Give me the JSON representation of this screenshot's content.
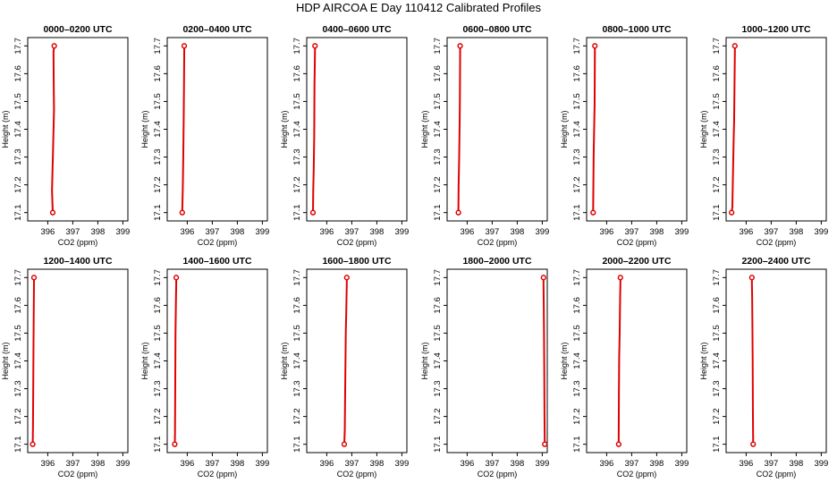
{
  "title": "HDP AIRCOA E  Day 110412  Calibrated Profiles",
  "colors": {
    "profile": "#e00000",
    "axis": "#000000",
    "background": "#ffffff"
  },
  "chart_data": [
    {
      "type": "line",
      "title": "0000–0200 UTC",
      "xlabel": "CO2 (ppm)",
      "ylabel": "Height (m)",
      "xlim": [
        395.2,
        399.2
      ],
      "ylim": [
        17.07,
        17.73
      ],
      "xticks": [
        396,
        397,
        398,
        399
      ],
      "yticks": [
        17.1,
        17.2,
        17.3,
        17.4,
        17.5,
        17.6,
        17.7
      ],
      "grid": false,
      "series": [
        {
          "x": [
            396.2,
            396.17,
            396.21,
            396.25,
            396.24,
            396.23,
            396.26
          ],
          "y": [
            17.1,
            17.18,
            17.32,
            17.47,
            17.55,
            17.68,
            17.7
          ],
          "endpoints": [
            17.1,
            17.7
          ]
        }
      ]
    },
    {
      "type": "line",
      "title": "0200–0400 UTC",
      "xlabel": "CO2 (ppm)",
      "ylabel": "Height (m)",
      "xlim": [
        395.2,
        399.2
      ],
      "ylim": [
        17.07,
        17.73
      ],
      "xticks": [
        396,
        397,
        398,
        399
      ],
      "yticks": [
        17.1,
        17.2,
        17.3,
        17.4,
        17.5,
        17.6,
        17.7
      ],
      "grid": false,
      "series": [
        {
          "x": [
            395.8,
            395.82,
            395.84,
            395.86,
            395.87,
            395.88,
            395.88
          ],
          "y": [
            17.1,
            17.18,
            17.29,
            17.46,
            17.56,
            17.68,
            17.7
          ],
          "endpoints": [
            17.1,
            17.7
          ]
        }
      ]
    },
    {
      "type": "line",
      "title": "0400–0600 UTC",
      "xlabel": "CO2 (ppm)",
      "ylabel": "Height (m)",
      "xlim": [
        395.2,
        399.2
      ],
      "ylim": [
        17.07,
        17.73
      ],
      "xticks": [
        396,
        397,
        398,
        399
      ],
      "yticks": [
        17.1,
        17.2,
        17.3,
        17.4,
        17.5,
        17.6,
        17.7
      ],
      "grid": false,
      "series": [
        {
          "x": [
            395.45,
            395.46,
            395.48,
            395.5,
            395.51,
            395.53,
            395.53
          ],
          "y": [
            17.1,
            17.18,
            17.26,
            17.38,
            17.56,
            17.68,
            17.7
          ],
          "endpoints": [
            17.1,
            17.7
          ]
        }
      ]
    },
    {
      "type": "line",
      "title": "0600–0800 UTC",
      "xlabel": "CO2 (ppm)",
      "ylabel": "Height (m)",
      "xlim": [
        395.2,
        399.2
      ],
      "ylim": [
        17.07,
        17.73
      ],
      "xticks": [
        396,
        397,
        398,
        399
      ],
      "yticks": [
        17.1,
        17.2,
        17.3,
        17.4,
        17.5,
        17.6,
        17.7
      ],
      "grid": false,
      "series": [
        {
          "x": [
            395.65,
            395.66,
            395.68,
            395.7,
            395.71,
            395.72,
            395.72
          ],
          "y": [
            17.1,
            17.2,
            17.29,
            17.42,
            17.5,
            17.68,
            17.7
          ],
          "endpoints": [
            17.1,
            17.7
          ]
        }
      ]
    },
    {
      "type": "line",
      "title": "0800–1000 UTC",
      "xlabel": "CO2 (ppm)",
      "ylabel": "Height (m)",
      "xlim": [
        395.2,
        399.2
      ],
      "ylim": [
        17.07,
        17.73
      ],
      "xticks": [
        396,
        397,
        398,
        399
      ],
      "yticks": [
        17.1,
        17.2,
        17.3,
        17.4,
        17.5,
        17.6,
        17.7
      ],
      "grid": false,
      "series": [
        {
          "x": [
            395.46,
            395.47,
            395.48,
            395.5,
            395.52,
            395.53,
            395.53
          ],
          "y": [
            17.1,
            17.2,
            17.3,
            17.4,
            17.49,
            17.68,
            17.7
          ],
          "endpoints": [
            17.1,
            17.7
          ]
        }
      ]
    },
    {
      "type": "line",
      "title": "1000–1200 UTC",
      "xlabel": "CO2 (ppm)",
      "ylabel": "Height (m)",
      "xlim": [
        395.2,
        399.2
      ],
      "ylim": [
        17.07,
        17.73
      ],
      "xticks": [
        396,
        397,
        398,
        399
      ],
      "yticks": [
        17.1,
        17.2,
        17.3,
        17.4,
        17.5,
        17.6,
        17.7
      ],
      "grid": false,
      "series": [
        {
          "x": [
            395.42,
            395.45,
            395.47,
            395.5,
            395.52,
            395.55,
            395.55
          ],
          "y": [
            17.1,
            17.12,
            17.22,
            17.36,
            17.43,
            17.68,
            17.7
          ],
          "endpoints": [
            17.1,
            17.7
          ]
        }
      ]
    },
    {
      "type": "line",
      "title": "1200–1400 UTC",
      "xlabel": "CO2 (ppm)",
      "ylabel": "Height (m)",
      "xlim": [
        395.2,
        399.2
      ],
      "ylim": [
        17.07,
        17.73
      ],
      "xticks": [
        396,
        397,
        398,
        399
      ],
      "yticks": [
        17.1,
        17.2,
        17.3,
        17.4,
        17.5,
        17.6,
        17.7
      ],
      "grid": false,
      "series": [
        {
          "x": [
            395.4,
            395.41,
            395.42,
            395.43,
            395.44,
            395.45,
            395.45
          ],
          "y": [
            17.1,
            17.16,
            17.3,
            17.45,
            17.57,
            17.68,
            17.7
          ],
          "endpoints": [
            17.1,
            17.7
          ]
        }
      ]
    },
    {
      "type": "line",
      "title": "1400–1600 UTC",
      "xlabel": "CO2 (ppm)",
      "ylabel": "Height (m)",
      "xlim": [
        395.2,
        399.2
      ],
      "ylim": [
        17.07,
        17.73
      ],
      "xticks": [
        396,
        397,
        398,
        399
      ],
      "yticks": [
        17.1,
        17.2,
        17.3,
        17.4,
        17.5,
        17.6,
        17.7
      ],
      "grid": false,
      "series": [
        {
          "x": [
            395.5,
            395.51,
            395.52,
            395.53,
            395.55,
            395.56,
            395.56
          ],
          "y": [
            17.1,
            17.13,
            17.3,
            17.5,
            17.63,
            17.68,
            17.7
          ],
          "endpoints": [
            17.1,
            17.7
          ]
        }
      ]
    },
    {
      "type": "line",
      "title": "1600–1800 UTC",
      "xlabel": "CO2 (ppm)",
      "ylabel": "Height (m)",
      "xlim": [
        395.2,
        399.2
      ],
      "ylim": [
        17.07,
        17.73
      ],
      "xticks": [
        396,
        397,
        398,
        399
      ],
      "yticks": [
        17.1,
        17.2,
        17.3,
        17.4,
        17.5,
        17.6,
        17.7
      ],
      "grid": false,
      "series": [
        {
          "x": [
            396.7,
            396.72,
            396.74,
            396.76,
            396.78,
            396.8,
            396.8
          ],
          "y": [
            17.1,
            17.15,
            17.33,
            17.5,
            17.58,
            17.68,
            17.7
          ],
          "endpoints": [
            17.1,
            17.7
          ]
        }
      ]
    },
    {
      "type": "line",
      "title": "1800–2000 UTC",
      "xlabel": "CO2 (ppm)",
      "ylabel": "Height (m)",
      "xlim": [
        395.2,
        399.2
      ],
      "ylim": [
        17.07,
        17.73
      ],
      "xticks": [
        396,
        397,
        398,
        399
      ],
      "yticks": [
        17.1,
        17.2,
        17.3,
        17.4,
        17.5,
        17.6,
        17.7
      ],
      "grid": false,
      "series": [
        {
          "x": [
            399.1,
            399.09,
            399.08,
            399.07,
            399.06,
            399.05,
            399.05
          ],
          "y": [
            17.1,
            17.2,
            17.37,
            17.5,
            17.6,
            17.68,
            17.7
          ],
          "endpoints": [
            17.1,
            17.7
          ]
        }
      ]
    },
    {
      "type": "line",
      "title": "2000–2200 UTC",
      "xlabel": "CO2 (ppm)",
      "ylabel": "Height (m)",
      "xlim": [
        395.2,
        399.2
      ],
      "ylim": [
        17.07,
        17.73
      ],
      "xticks": [
        396,
        397,
        398,
        399
      ],
      "yticks": [
        17.1,
        17.2,
        17.3,
        17.4,
        17.5,
        17.6,
        17.7
      ],
      "grid": false,
      "series": [
        {
          "x": [
            396.48,
            396.49,
            396.5,
            396.52,
            396.54,
            396.55,
            396.55
          ],
          "y": [
            17.1,
            17.28,
            17.41,
            17.5,
            17.64,
            17.68,
            17.7
          ],
          "endpoints": [
            17.1,
            17.7
          ]
        }
      ]
    },
    {
      "type": "line",
      "title": "2200–2400 UTC",
      "xlabel": "CO2 (ppm)",
      "ylabel": "Height (m)",
      "xlim": [
        395.2,
        399.2
      ],
      "ylim": [
        17.07,
        17.73
      ],
      "xticks": [
        396,
        397,
        398,
        399
      ],
      "yticks": [
        17.1,
        17.2,
        17.3,
        17.4,
        17.5,
        17.6,
        17.7
      ],
      "grid": false,
      "series": [
        {
          "x": [
            396.28,
            396.27,
            396.26,
            396.25,
            396.24,
            396.23,
            396.23
          ],
          "y": [
            17.1,
            17.22,
            17.41,
            17.53,
            17.63,
            17.68,
            17.7
          ],
          "endpoints": [
            17.1,
            17.7
          ]
        }
      ]
    }
  ]
}
